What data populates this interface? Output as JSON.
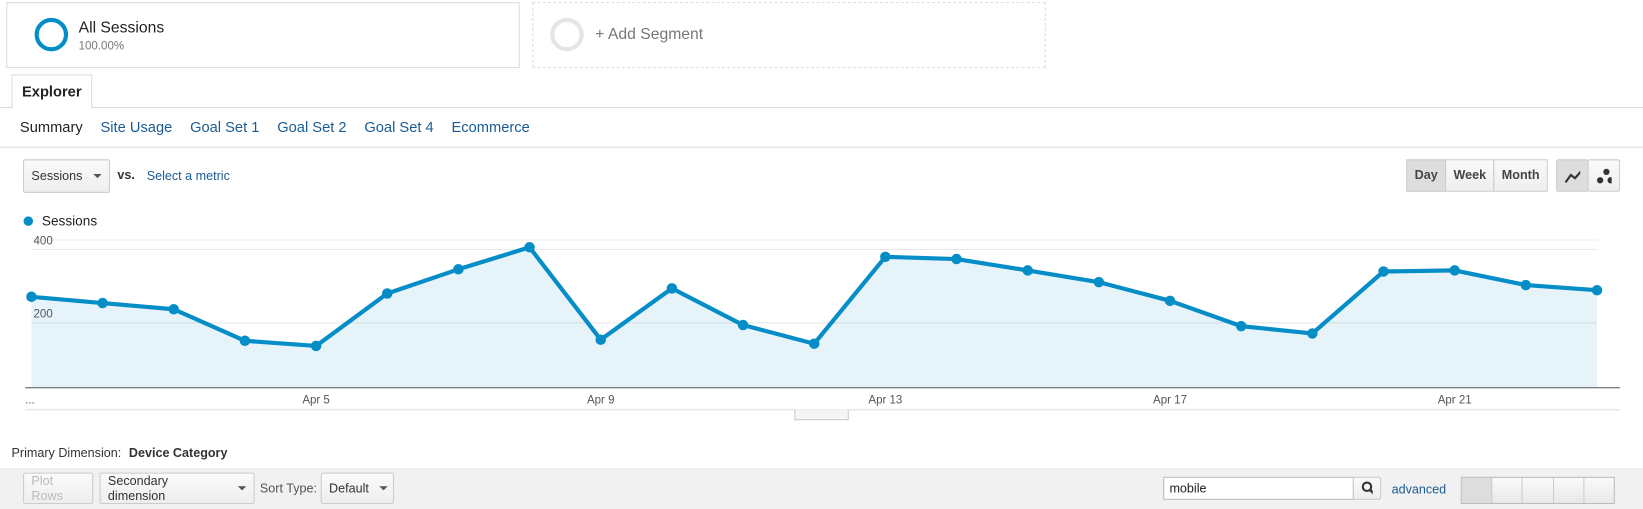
{
  "segments": [
    {
      "name": "All Sessions",
      "share": "100.00%"
    },
    {
      "name": "+ Add Segment"
    }
  ],
  "tab": "Explorer",
  "subtabs": [
    "Summary",
    "Site Usage",
    "Goal Set 1",
    "Goal Set 2",
    "Goal Set 4",
    "Ecommerce"
  ],
  "metric_picker": {
    "metric": "Sessions",
    "vs": "vs.",
    "select": "Select a metric"
  },
  "period_buttons": [
    "Day",
    "Week",
    "Month"
  ],
  "chart_data": {
    "type": "line",
    "categories": [
      "...",
      null,
      null,
      null,
      "Apr 5",
      null,
      null,
      null,
      "Apr 9",
      null,
      null,
      null,
      "Apr 13",
      null,
      null,
      null,
      "Apr 17",
      null,
      null,
      null,
      "Apr 21",
      null,
      null
    ],
    "series": [
      {
        "name": "Sessions",
        "color": "#058dc7",
        "values": [
          271,
          254,
          237,
          151,
          137,
          280,
          346,
          406,
          154,
          294,
          194,
          143,
          380,
          374,
          343,
          311,
          260,
          191,
          171,
          340,
          343,
          303,
          289
        ]
      }
    ],
    "ylim": [
      23,
      426
    ],
    "yticks": [
      200,
      400
    ],
    "grid": true,
    "area": true
  },
  "primary_dimension": {
    "label": "Primary Dimension:",
    "value": "Device Category"
  },
  "toolbar": {
    "plot_rows": "Plot Rows",
    "secondary": "Secondary dimension",
    "sort_label": "Sort Type:",
    "sort": "Default",
    "search": "mobile",
    "advanced": "advanced"
  }
}
